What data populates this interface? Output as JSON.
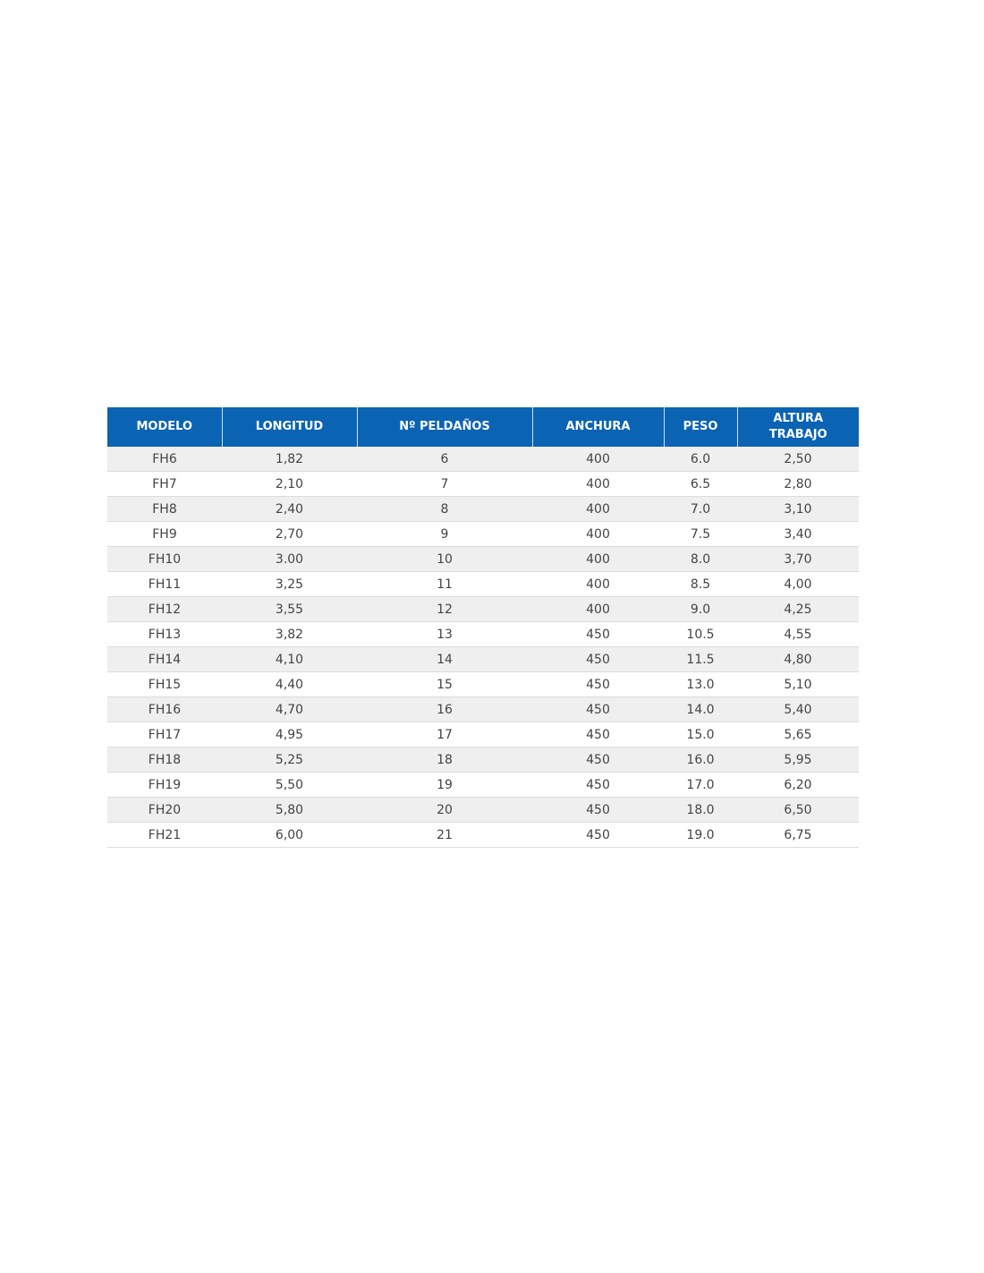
{
  "table": {
    "headers": [
      "MODELO",
      "LONGITUD",
      "Nº PELDAÑOS",
      "ANCHURA",
      "PESO",
      "ALTURA TRABAJO"
    ],
    "rows": [
      [
        "FH6",
        "1,82",
        "6",
        "400",
        "6.0",
        "2,50"
      ],
      [
        "FH7",
        "2,10",
        "7",
        "400",
        "6.5",
        "2,80"
      ],
      [
        "FH8",
        "2,40",
        "8",
        "400",
        "7.0",
        "3,10"
      ],
      [
        "FH9",
        "2,70",
        "9",
        "400",
        "7.5",
        "3,40"
      ],
      [
        "FH10",
        "3.00",
        "10",
        "400",
        "8.0",
        "3,70"
      ],
      [
        "FH11",
        "3,25",
        "11",
        "400",
        "8.5",
        "4,00"
      ],
      [
        "FH12",
        "3,55",
        "12",
        "400",
        "9.0",
        "4,25"
      ],
      [
        "FH13",
        "3,82",
        "13",
        "450",
        "10.5",
        "4,55"
      ],
      [
        "FH14",
        "4,10",
        "14",
        "450",
        "11.5",
        "4,80"
      ],
      [
        "FH15",
        "4,40",
        "15",
        "450",
        "13.0",
        "5,10"
      ],
      [
        "FH16",
        "4,70",
        "16",
        "450",
        "14.0",
        "5,40"
      ],
      [
        "FH17",
        "4,95",
        "17",
        "450",
        "15.0",
        "5,65"
      ],
      [
        "FH18",
        "5,25",
        "18",
        "450",
        "16.0",
        "5,95"
      ],
      [
        "FH19",
        "5,50",
        "19",
        "450",
        "17.0",
        "6,20"
      ],
      [
        "FH20",
        "5,80",
        "20",
        "450",
        "18.0",
        "6,50"
      ],
      [
        "FH21",
        "6,00",
        "21",
        "450",
        "19.0",
        "6,75"
      ]
    ],
    "header_color": "#0b63b3",
    "stripe_color": "#efefef"
  }
}
